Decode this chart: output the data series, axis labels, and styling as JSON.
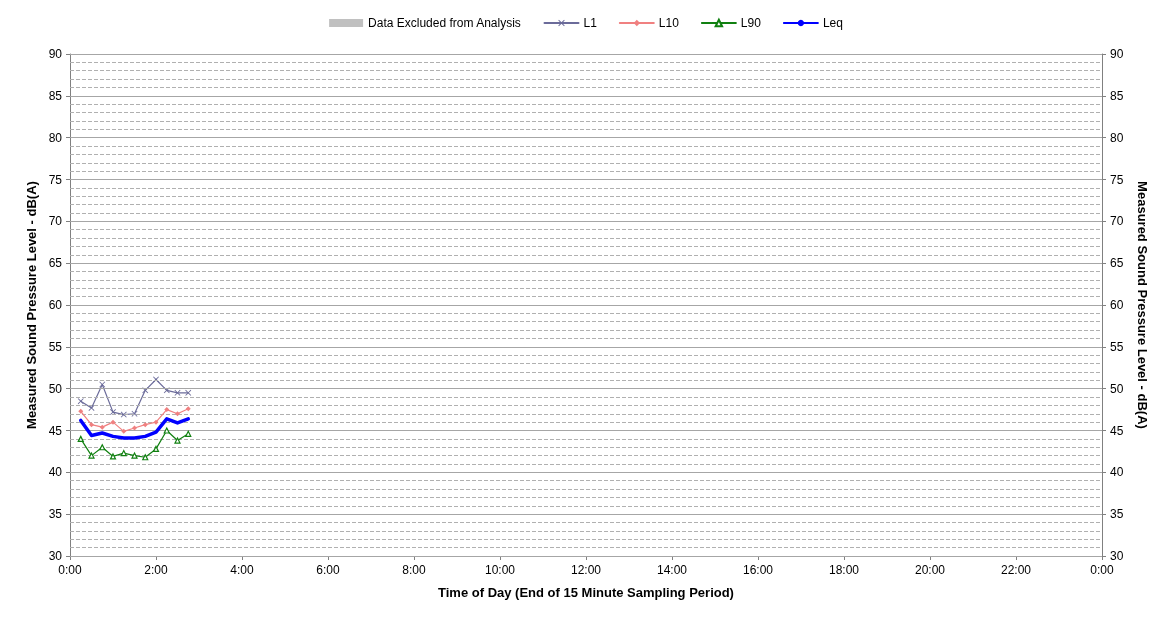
{
  "chart_data": {
    "type": "line",
    "xlabel": "Time of Day (End of 15 Minute Sampling Period)",
    "ylabel": "Measured Sound Pressure Level - dB(A)",
    "y2label": "Measured Sound Pressure Level - dB(A)",
    "x": [
      0.25,
      0.5,
      0.75,
      1,
      1.25,
      1.5,
      1.75,
      2,
      2.25,
      2.5,
      2.75
    ],
    "series": [
      {
        "name": "Data Excluded from Analysis",
        "type": "bar",
        "color": "#c0c0c0",
        "values": [
          null,
          null,
          null,
          null,
          null,
          null,
          null,
          null,
          null,
          null,
          null
        ]
      },
      {
        "name": "L1",
        "color": "#6b6b9a",
        "marker": "cross",
        "values": [
          48.5,
          47.7,
          50.5,
          47.2,
          46.9,
          47.0,
          49.8,
          51.1,
          49.8,
          49.5,
          49.5
        ]
      },
      {
        "name": "L10",
        "color": "#f08080",
        "marker": "diamond",
        "values": [
          47.3,
          45.7,
          45.4,
          46.0,
          44.9,
          45.3,
          45.7,
          46.0,
          47.5,
          47.0,
          47.6
        ]
      },
      {
        "name": "L90",
        "color": "#108010",
        "marker": "triangle",
        "values": [
          44.0,
          42.0,
          43.0,
          41.9,
          42.3,
          42.0,
          41.8,
          42.8,
          45.0,
          43.8,
          44.6
        ]
      },
      {
        "name": "Leq",
        "color": "#0000ff",
        "marker": "none",
        "values": [
          46.2,
          44.4,
          44.7,
          44.3,
          44.1,
          44.1,
          44.3,
          44.8,
          46.4,
          45.9,
          46.4
        ]
      }
    ],
    "xlim": [
      0,
      24
    ],
    "xticks": [
      {
        "value": 0,
        "label": "0:00"
      },
      {
        "value": 2,
        "label": "2:00"
      },
      {
        "value": 4,
        "label": "4:00"
      },
      {
        "value": 6,
        "label": "6:00"
      },
      {
        "value": 8,
        "label": "8:00"
      },
      {
        "value": 10,
        "label": "10:00"
      },
      {
        "value": 12,
        "label": "12:00"
      },
      {
        "value": 14,
        "label": "14:00"
      },
      {
        "value": 16,
        "label": "16:00"
      },
      {
        "value": 18,
        "label": "18:00"
      },
      {
        "value": 20,
        "label": "20:00"
      },
      {
        "value": 22,
        "label": "22:00"
      },
      {
        "value": 24,
        "label": "0:00"
      }
    ],
    "ylim": [
      30,
      90
    ],
    "yticks": [
      30,
      {
        "value": 31,
        "label": null
      },
      {
        "value": 32,
        "label": null
      },
      {
        "value": 33,
        "label": null
      },
      {
        "value": 34,
        "label": null
      },
      35,
      {
        "value": 36,
        "label": null
      },
      {
        "value": 37,
        "label": null
      },
      {
        "value": 38,
        "label": null
      },
      {
        "value": 39,
        "label": null
      },
      40,
      {
        "value": 41,
        "label": null
      },
      {
        "value": 42,
        "label": null
      },
      {
        "value": 43,
        "label": null
      },
      {
        "value": 44,
        "label": null
      },
      45,
      {
        "value": 46,
        "label": null
      },
      {
        "value": 47,
        "label": null
      },
      {
        "value": 48,
        "label": null
      },
      {
        "value": 49,
        "label": null
      },
      50,
      {
        "value": 51,
        "label": null
      },
      {
        "value": 52,
        "label": null
      },
      {
        "value": 53,
        "label": null
      },
      {
        "value": 54,
        "label": null
      },
      55,
      {
        "value": 56,
        "label": null
      },
      {
        "value": 57,
        "label": null
      },
      {
        "value": 58,
        "label": null
      },
      {
        "value": 59,
        "label": null
      },
      60,
      {
        "value": 61,
        "label": null
      },
      {
        "value": 62,
        "label": null
      },
      {
        "value": 63,
        "label": null
      },
      {
        "value": 64,
        "label": null
      },
      65,
      {
        "value": 66,
        "label": null
      },
      {
        "value": 67,
        "label": null
      },
      {
        "value": 68,
        "label": null
      },
      {
        "value": 69,
        "label": null
      },
      70,
      {
        "value": 71,
        "label": null
      },
      {
        "value": 72,
        "label": null
      },
      {
        "value": 73,
        "label": null
      },
      {
        "value": 74,
        "label": null
      },
      75,
      {
        "value": 76,
        "label": null
      },
      {
        "value": 77,
        "label": null
      },
      {
        "value": 78,
        "label": null
      },
      {
        "value": 79,
        "label": null
      },
      80,
      {
        "value": 81,
        "label": null
      },
      {
        "value": 82,
        "label": null
      },
      {
        "value": 83,
        "label": null
      },
      {
        "value": 84,
        "label": null
      },
      85,
      {
        "value": 86,
        "label": null
      },
      {
        "value": 87,
        "label": null
      },
      {
        "value": 88,
        "label": null
      },
      {
        "value": 89,
        "label": null
      },
      90
    ],
    "y2lim": [
      30,
      90
    ],
    "y2ticks": [
      30,
      35,
      40,
      45,
      50,
      55,
      60,
      65,
      70,
      75,
      80,
      85,
      90
    ],
    "grid": "y",
    "legend": "top",
    "line_style": "solid"
  }
}
